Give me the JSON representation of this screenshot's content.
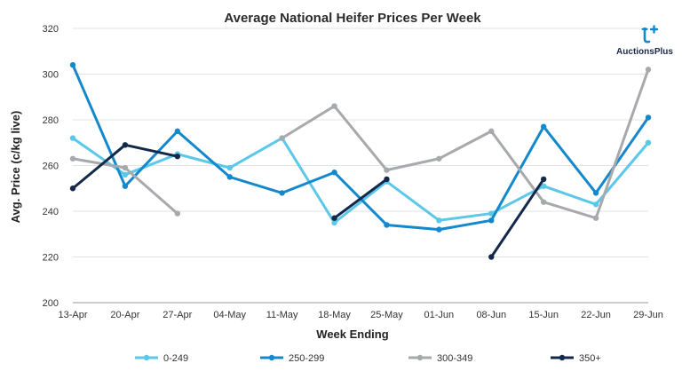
{
  "chart_data": {
    "type": "line",
    "title": "Average National Heifer Prices Per Week",
    "xlabel": "Week Ending",
    "ylabel": "Avg. Price (c/kg live)",
    "categories": [
      "13-Apr",
      "20-Apr",
      "27-Apr",
      "04-May",
      "11-May",
      "18-May",
      "25-May",
      "01-Jun",
      "08-Jun",
      "15-Jun",
      "22-Jun",
      "29-Jun"
    ],
    "ylim": [
      200,
      320
    ],
    "yticks": [
      200,
      220,
      240,
      260,
      280,
      300,
      320
    ],
    "grid": "horizontal",
    "legend_position": "bottom",
    "series": [
      {
        "name": "0-249",
        "color": "#5bc8ea",
        "values": [
          272,
          256,
          265,
          259,
          272,
          235,
          253,
          236,
          239,
          251,
          243,
          270
        ]
      },
      {
        "name": "250-299",
        "color": "#1488cc",
        "values": [
          304,
          251,
          275,
          255,
          248,
          257,
          234,
          232,
          236,
          277,
          248,
          281
        ]
      },
      {
        "name": "300-349",
        "color": "#a7a9ac",
        "values": [
          263,
          259,
          239,
          null,
          272,
          286,
          258,
          263,
          275,
          244,
          237,
          302
        ]
      },
      {
        "name": "350+",
        "color": "#13294b",
        "values": [
          250,
          269,
          264,
          null,
          null,
          237,
          254,
          null,
          220,
          254,
          null,
          null
        ]
      }
    ]
  },
  "logo": {
    "brand": "AuctionsPlus",
    "accent": "#1488cc"
  }
}
